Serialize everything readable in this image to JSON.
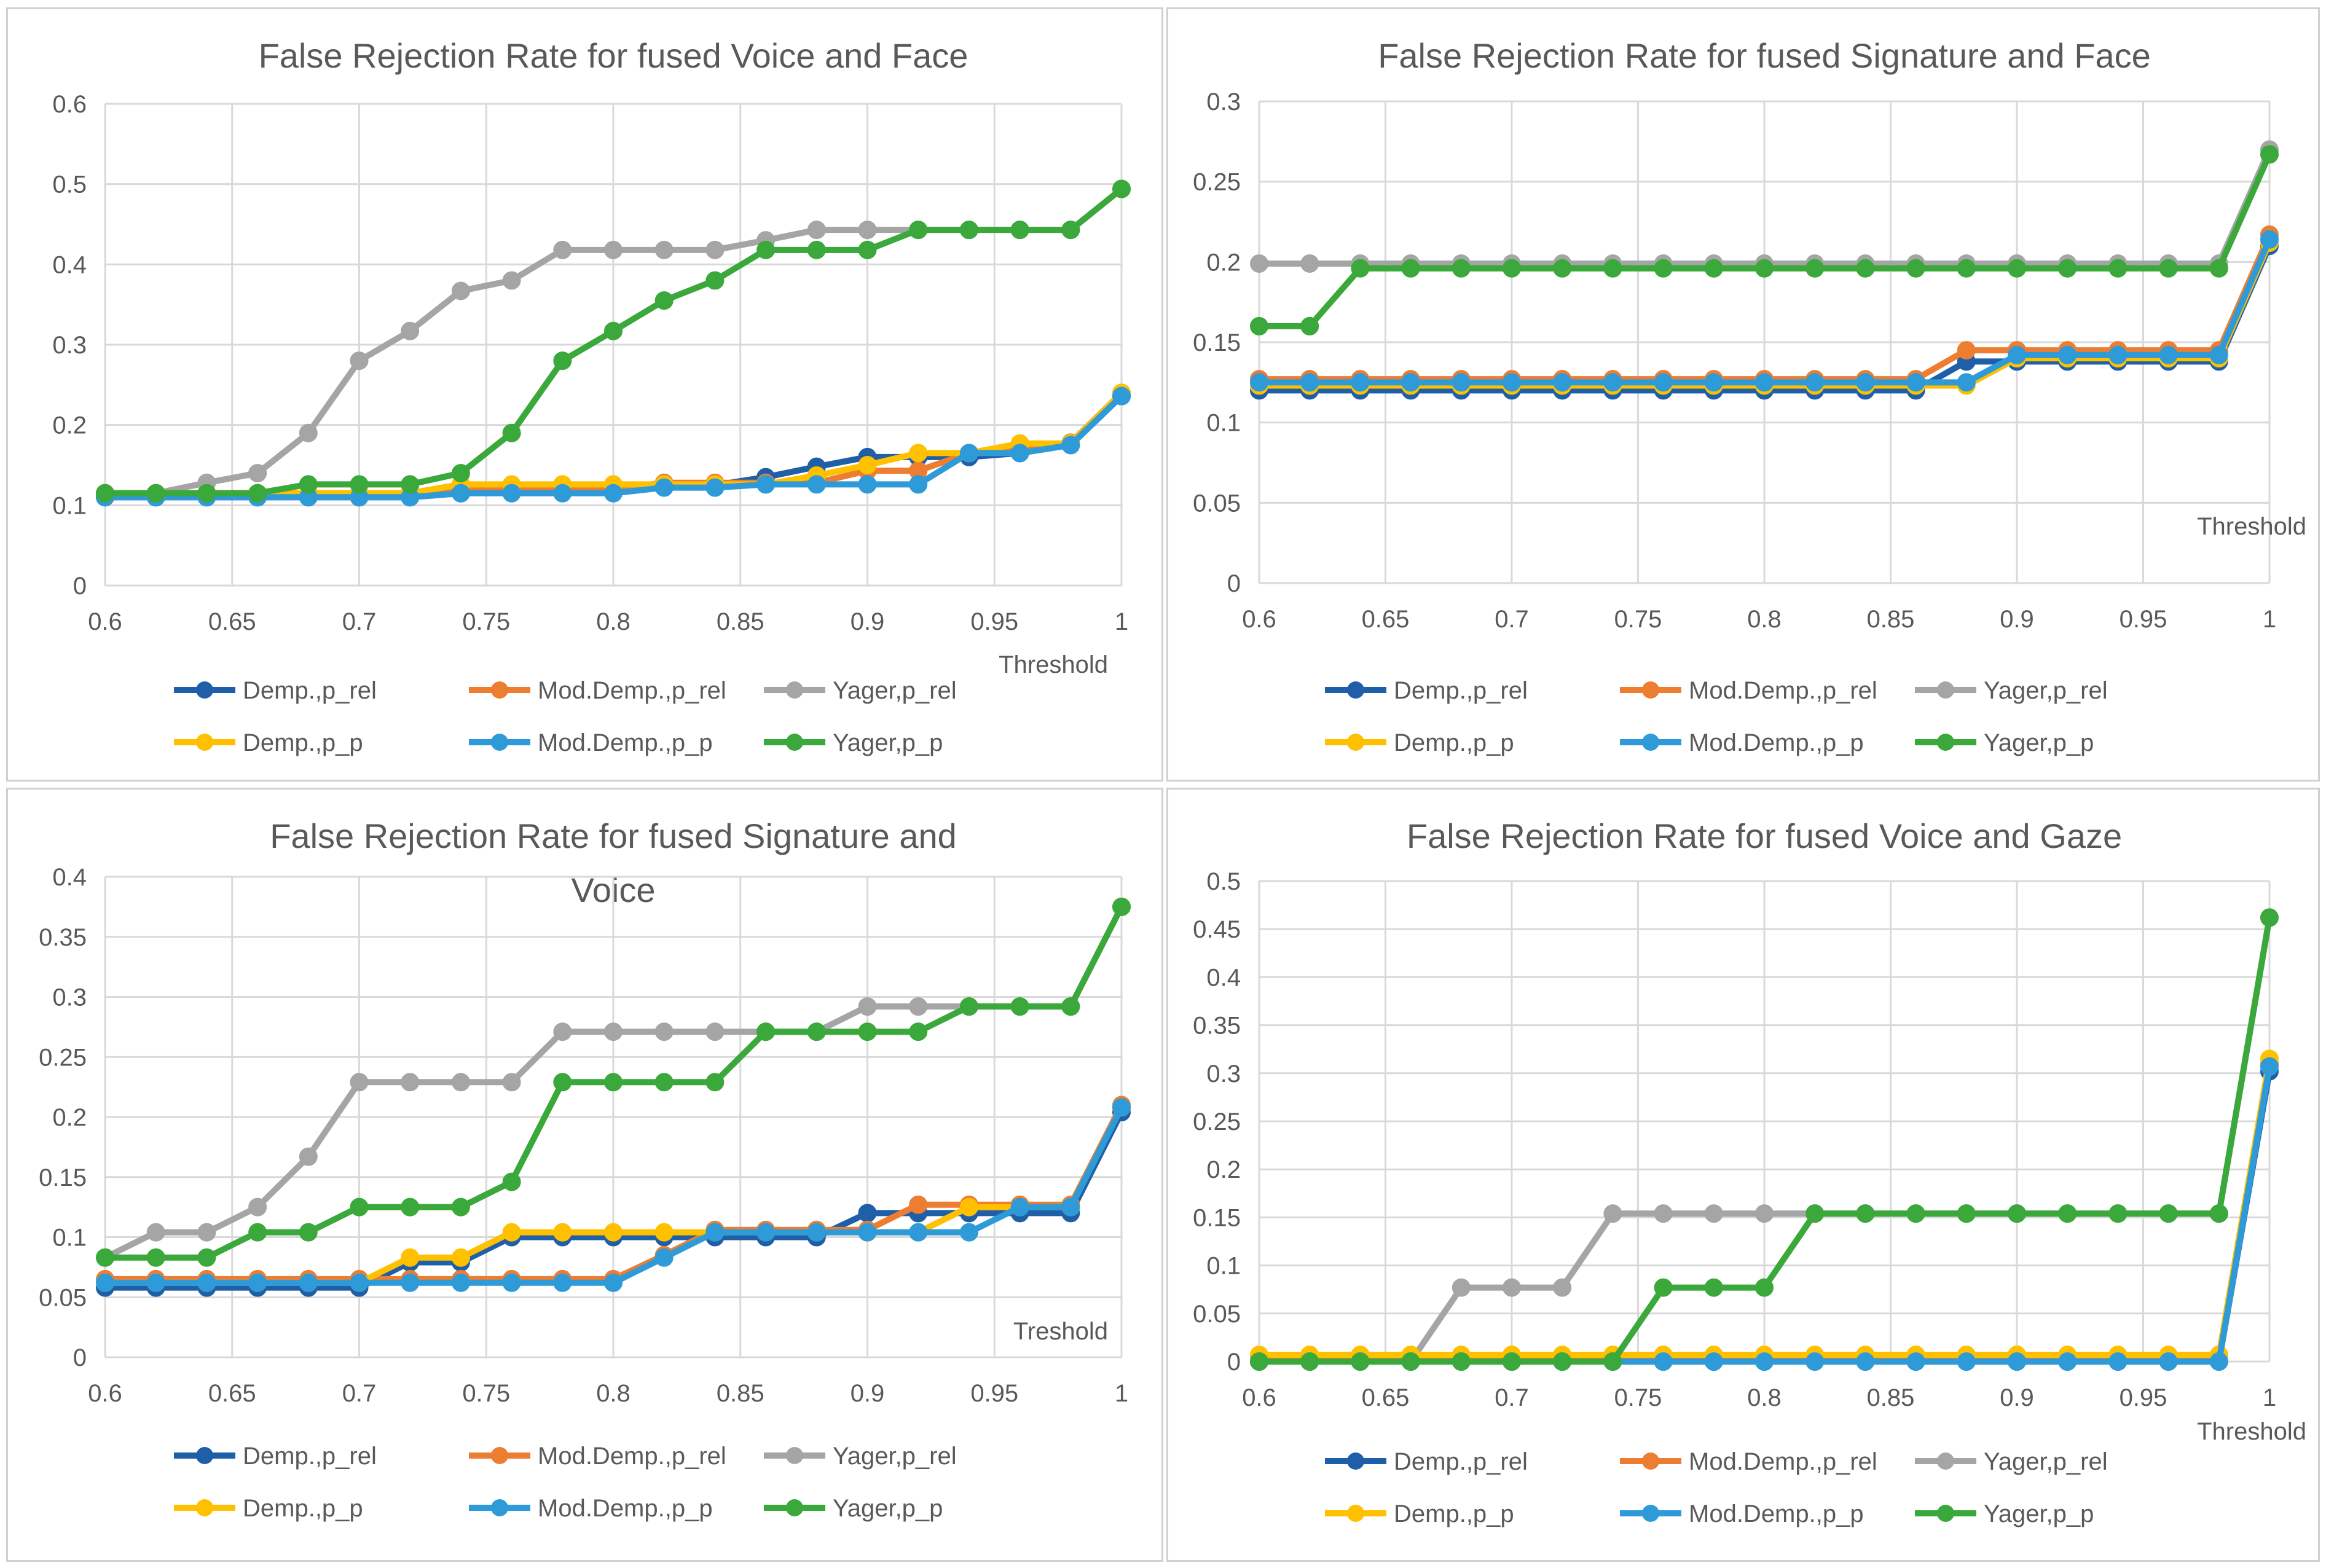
{
  "chart_data": [
    {
      "type": "line",
      "title": "False Rejection Rate for fused Voice and Face",
      "xlabel": "Threshold",
      "ylabel": "",
      "xlim": [
        0.6,
        1
      ],
      "ylim": [
        0,
        0.6
      ],
      "xticks": [
        0.6,
        0.65,
        0.7,
        0.75,
        0.8,
        0.85,
        0.9,
        0.95,
        1
      ],
      "xtick_labels": [
        "0.6",
        "0.65",
        "0.7",
        "0.75",
        "0.8",
        "0.85",
        "0.9",
        "0.95",
        "1"
      ],
      "yticks": [
        0,
        0.1,
        0.2,
        0.3,
        0.4,
        0.5,
        0.6
      ],
      "ytick_labels": [
        "0",
        "0.1",
        "0.2",
        "0.3",
        "0.4",
        "0.5",
        "0.6"
      ],
      "grid": true,
      "legend_position": "bottom",
      "x": [
        0.6,
        0.62,
        0.64,
        0.66,
        0.68,
        0.7,
        0.72,
        0.74,
        0.76,
        0.78,
        0.8,
        0.82,
        0.84,
        0.86,
        0.88,
        0.9,
        0.92,
        0.94,
        0.96,
        0.98,
        1.0
      ],
      "series": [
        {
          "name": "Demp.,p_rel",
          "color": "#1f5fa8",
          "values": [
            0.11,
            0.11,
            0.11,
            0.11,
            0.11,
            0.11,
            0.11,
            0.115,
            0.12,
            0.12,
            0.12,
            0.125,
            0.125,
            0.135,
            0.148,
            0.16,
            0.16,
            0.16,
            0.165,
            0.175,
            0.236
          ]
        },
        {
          "name": "Mod.Demp.,p_rel",
          "color": "#ed7d31",
          "values": [
            0.115,
            0.115,
            0.115,
            0.115,
            0.115,
            0.115,
            0.115,
            0.12,
            0.12,
            0.12,
            0.12,
            0.128,
            0.128,
            0.128,
            0.128,
            0.143,
            0.143,
            0.165,
            0.168,
            0.178,
            0.24
          ]
        },
        {
          "name": "Yager,p_rel",
          "color": "#a5a5a5",
          "values": [
            0.115,
            0.115,
            0.128,
            0.14,
            0.19,
            0.28,
            0.317,
            0.367,
            0.38,
            0.418,
            0.418,
            0.418,
            0.418,
            0.43,
            0.443,
            0.443,
            0.443,
            0.443,
            0.443,
            0.443,
            0.494
          ]
        },
        {
          "name": "Demp.,p_p",
          "color": "#ffc000",
          "values": [
            0.115,
            0.115,
            0.115,
            0.115,
            0.115,
            0.115,
            0.115,
            0.126,
            0.126,
            0.126,
            0.126,
            0.126,
            0.126,
            0.126,
            0.137,
            0.15,
            0.165,
            0.165,
            0.177,
            0.177,
            0.24
          ]
        },
        {
          "name": "Mod.Demp.,p_p",
          "color": "#2e9bd8",
          "values": [
            0.11,
            0.11,
            0.11,
            0.11,
            0.11,
            0.11,
            0.11,
            0.115,
            0.115,
            0.115,
            0.115,
            0.122,
            0.122,
            0.126,
            0.126,
            0.126,
            0.126,
            0.165,
            0.165,
            0.175,
            0.236
          ]
        },
        {
          "name": "Yager,p_p",
          "color": "#3aa83a",
          "values": [
            0.115,
            0.115,
            0.115,
            0.115,
            0.126,
            0.126,
            0.126,
            0.14,
            0.19,
            0.28,
            0.317,
            0.355,
            0.38,
            0.418,
            0.418,
            0.418,
            0.443,
            0.443,
            0.443,
            0.443,
            0.494
          ]
        }
      ]
    },
    {
      "type": "line",
      "title": "False Rejection Rate for fused Signature and Face",
      "xlabel": "Threshold",
      "ylabel": "",
      "xlim": [
        0.6,
        1
      ],
      "ylim": [
        0,
        0.3
      ],
      "xticks": [
        0.6,
        0.65,
        0.7,
        0.75,
        0.8,
        0.85,
        0.9,
        0.95,
        1
      ],
      "xtick_labels": [
        "0.6",
        "0.65",
        "0.7",
        "0.75",
        "0.8",
        "0.85",
        "0.9",
        "0.95",
        "1"
      ],
      "yticks": [
        0,
        0.05,
        0.1,
        0.15,
        0.2,
        0.25,
        0.3
      ],
      "ytick_labels": [
        "0",
        "0.05",
        "0.1",
        "0.15",
        "0.2",
        "0.25",
        "0.3"
      ],
      "grid": true,
      "legend_position": "bottom",
      "x": [
        0.6,
        0.62,
        0.64,
        0.66,
        0.68,
        0.7,
        0.72,
        0.74,
        0.76,
        0.78,
        0.8,
        0.82,
        0.84,
        0.86,
        0.88,
        0.9,
        0.92,
        0.94,
        0.96,
        0.98,
        1.0
      ],
      "series": [
        {
          "name": "Demp.,p_rel",
          "color": "#1f5fa8",
          "values": [
            0.12,
            0.12,
            0.12,
            0.12,
            0.12,
            0.12,
            0.12,
            0.12,
            0.12,
            0.12,
            0.12,
            0.12,
            0.12,
            0.12,
            0.138,
            0.138,
            0.138,
            0.138,
            0.138,
            0.138,
            0.21
          ]
        },
        {
          "name": "Mod.Demp.,p_rel",
          "color": "#ed7d31",
          "values": [
            0.127,
            0.127,
            0.127,
            0.127,
            0.127,
            0.127,
            0.127,
            0.127,
            0.127,
            0.127,
            0.127,
            0.127,
            0.127,
            0.127,
            0.145,
            0.145,
            0.145,
            0.145,
            0.145,
            0.145,
            0.217
          ]
        },
        {
          "name": "Yager,p_rel",
          "color": "#a5a5a5",
          "values": [
            0.199,
            0.199,
            0.199,
            0.199,
            0.199,
            0.199,
            0.199,
            0.199,
            0.199,
            0.199,
            0.199,
            0.199,
            0.199,
            0.199,
            0.199,
            0.199,
            0.199,
            0.199,
            0.199,
            0.199,
            0.27
          ]
        },
        {
          "name": "Demp.,p_p",
          "color": "#ffc000",
          "values": [
            0.123,
            0.123,
            0.123,
            0.123,
            0.123,
            0.123,
            0.123,
            0.123,
            0.123,
            0.123,
            0.123,
            0.123,
            0.123,
            0.123,
            0.123,
            0.14,
            0.14,
            0.14,
            0.14,
            0.14,
            0.212
          ]
        },
        {
          "name": "Mod.Demp.,p_p",
          "color": "#2e9bd8",
          "values": [
            0.125,
            0.125,
            0.125,
            0.125,
            0.125,
            0.125,
            0.125,
            0.125,
            0.125,
            0.125,
            0.125,
            0.125,
            0.125,
            0.125,
            0.125,
            0.142,
            0.142,
            0.142,
            0.142,
            0.142,
            0.214
          ]
        },
        {
          "name": "Yager,p_p",
          "color": "#3aa83a",
          "values": [
            0.16,
            0.16,
            0.196,
            0.196,
            0.196,
            0.196,
            0.196,
            0.196,
            0.196,
            0.196,
            0.196,
            0.196,
            0.196,
            0.196,
            0.196,
            0.196,
            0.196,
            0.196,
            0.196,
            0.196,
            0.267
          ]
        }
      ]
    },
    {
      "type": "line",
      "title": "False Rejection Rate for fused Signature and Voice",
      "title_lines": [
        "False Rejection Rate for fused Signature and",
        "Voice"
      ],
      "xlabel": "Treshold",
      "ylabel": "",
      "xlim": [
        0.6,
        1
      ],
      "ylim": [
        0,
        0.4
      ],
      "xticks": [
        0.6,
        0.65,
        0.7,
        0.75,
        0.8,
        0.85,
        0.9,
        0.95,
        1
      ],
      "xtick_labels": [
        "0.6",
        "0.65",
        "0.7",
        "0.75",
        "0.8",
        "0.85",
        "0.9",
        "0.95",
        "1"
      ],
      "yticks": [
        0,
        0.05,
        0.1,
        0.15,
        0.2,
        0.25,
        0.3,
        0.35,
        0.4
      ],
      "ytick_labels": [
        "0",
        "0.05",
        "0.1",
        "0.15",
        "0.2",
        "0.25",
        "0.3",
        "0.35",
        "0.4"
      ],
      "grid": true,
      "legend_position": "bottom",
      "x": [
        0.6,
        0.62,
        0.64,
        0.66,
        0.68,
        0.7,
        0.72,
        0.74,
        0.76,
        0.78,
        0.8,
        0.82,
        0.84,
        0.86,
        0.88,
        0.9,
        0.92,
        0.94,
        0.96,
        0.98,
        1.0
      ],
      "series": [
        {
          "name": "Demp.,p_rel",
          "color": "#1f5fa8",
          "values": [
            0.058,
            0.058,
            0.058,
            0.058,
            0.058,
            0.058,
            0.079,
            0.079,
            0.1,
            0.1,
            0.1,
            0.1,
            0.1,
            0.1,
            0.1,
            0.12,
            0.12,
            0.12,
            0.12,
            0.12,
            0.204
          ]
        },
        {
          "name": "Mod.Demp.,p_rel",
          "color": "#ed7d31",
          "values": [
            0.065,
            0.065,
            0.065,
            0.065,
            0.065,
            0.065,
            0.065,
            0.065,
            0.065,
            0.065,
            0.065,
            0.085,
            0.106,
            0.106,
            0.106,
            0.106,
            0.127,
            0.127,
            0.127,
            0.127,
            0.21
          ]
        },
        {
          "name": "Yager,p_rel",
          "color": "#a5a5a5",
          "values": [
            0.083,
            0.104,
            0.104,
            0.125,
            0.167,
            0.229,
            0.229,
            0.229,
            0.229,
            0.271,
            0.271,
            0.271,
            0.271,
            0.271,
            0.271,
            0.292,
            0.292,
            0.292,
            0.292,
            0.292,
            0.375
          ]
        },
        {
          "name": "Demp.,p_p",
          "color": "#ffc000",
          "values": [
            0.062,
            0.062,
            0.062,
            0.062,
            0.062,
            0.062,
            0.083,
            0.083,
            0.104,
            0.104,
            0.104,
            0.104,
            0.104,
            0.104,
            0.104,
            0.104,
            0.104,
            0.125,
            0.125,
            0.125,
            0.208
          ]
        },
        {
          "name": "Mod.Demp.,p_p",
          "color": "#2e9bd8",
          "values": [
            0.062,
            0.062,
            0.062,
            0.062,
            0.062,
            0.062,
            0.062,
            0.062,
            0.062,
            0.062,
            0.062,
            0.083,
            0.104,
            0.104,
            0.104,
            0.104,
            0.104,
            0.104,
            0.125,
            0.125,
            0.208
          ]
        },
        {
          "name": "Yager,p_p",
          "color": "#3aa83a",
          "values": [
            0.083,
            0.083,
            0.083,
            0.104,
            0.104,
            0.125,
            0.125,
            0.125,
            0.146,
            0.229,
            0.229,
            0.229,
            0.229,
            0.271,
            0.271,
            0.271,
            0.271,
            0.292,
            0.292,
            0.292,
            0.375
          ]
        }
      ]
    },
    {
      "type": "line",
      "title": "False Rejection Rate for fused Voice and Gaze",
      "xlabel": "Threshold",
      "ylabel": "",
      "xlim": [
        0.6,
        1
      ],
      "ylim": [
        0,
        0.5
      ],
      "xticks": [
        0.6,
        0.65,
        0.7,
        0.75,
        0.8,
        0.85,
        0.9,
        0.95,
        1
      ],
      "xtick_labels": [
        "0.6",
        "0.65",
        "0.7",
        "0.75",
        "0.8",
        "0.85",
        "0.9",
        "0.95",
        "1"
      ],
      "yticks": [
        0,
        0.05,
        0.1,
        0.15,
        0.2,
        0.25,
        0.3,
        0.35,
        0.4,
        0.45,
        0.5
      ],
      "ytick_labels": [
        "0",
        "0.05",
        "0.1",
        "0.15",
        "0.2",
        "0.25",
        "0.3",
        "0.35",
        "0.4",
        "0.45",
        "0.5"
      ],
      "grid": true,
      "legend_position": "bottom",
      "x": [
        0.6,
        0.62,
        0.64,
        0.66,
        0.68,
        0.7,
        0.72,
        0.74,
        0.76,
        0.78,
        0.8,
        0.82,
        0.84,
        0.86,
        0.88,
        0.9,
        0.92,
        0.94,
        0.96,
        0.98,
        1.0
      ],
      "series": [
        {
          "name": "Demp.,p_rel",
          "color": "#1f5fa8",
          "values": [
            0,
            0,
            0,
            0,
            0,
            0,
            0,
            0,
            0,
            0,
            0,
            0,
            0,
            0,
            0,
            0,
            0,
            0,
            0,
            0,
            0.302
          ]
        },
        {
          "name": "Mod.Demp.,p_rel",
          "color": "#ed7d31",
          "values": [
            0.005,
            0.005,
            0.005,
            0.005,
            0.005,
            0.005,
            0.005,
            0.005,
            0.005,
            0.005,
            0.005,
            0.005,
            0.005,
            0.005,
            0.005,
            0.005,
            0.005,
            0.005,
            0.005,
            0.005,
            0.31
          ]
        },
        {
          "name": "Yager,p_rel",
          "color": "#a5a5a5",
          "values": [
            0,
            0,
            0,
            0,
            0.077,
            0.077,
            0.077,
            0.154,
            0.154,
            0.154,
            0.154,
            0.154,
            0.154,
            0.154,
            0.154,
            0.154,
            0.154,
            0.154,
            0.154,
            0.154,
            0.462
          ]
        },
        {
          "name": "Demp.,p_p",
          "color": "#ffc000",
          "values": [
            0.007,
            0.007,
            0.007,
            0.007,
            0.007,
            0.007,
            0.007,
            0.007,
            0.007,
            0.007,
            0.007,
            0.007,
            0.007,
            0.007,
            0.007,
            0.007,
            0.007,
            0.007,
            0.007,
            0.007,
            0.315
          ]
        },
        {
          "name": "Mod.Demp.,p_p",
          "color": "#2e9bd8",
          "values": [
            0,
            0,
            0,
            0,
            0,
            0,
            0,
            0,
            0,
            0,
            0,
            0,
            0,
            0,
            0,
            0,
            0,
            0,
            0,
            0,
            0.307
          ]
        },
        {
          "name": "Yager,p_p",
          "color": "#3aa83a",
          "values": [
            0,
            0,
            0,
            0,
            0,
            0,
            0,
            0,
            0.077,
            0.077,
            0.077,
            0.154,
            0.154,
            0.154,
            0.154,
            0.154,
            0.154,
            0.154,
            0.154,
            0.154,
            0.462
          ]
        }
      ]
    }
  ]
}
